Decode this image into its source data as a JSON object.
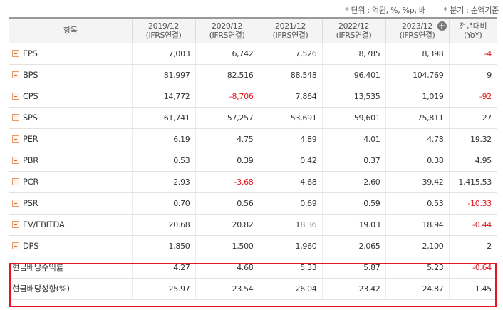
{
  "notes": {
    "unit": "* 단위 : 억원, %, %p, 배",
    "period": "* 분기 : 순액기준"
  },
  "header": {
    "item_label": "항목",
    "years": [
      {
        "year": "2019/12",
        "basis": "(IFRS연결)"
      },
      {
        "year": "2020/12",
        "basis": "(IFRS연결)"
      },
      {
        "year": "2021/12",
        "basis": "(IFRS연결)"
      },
      {
        "year": "2022/12",
        "basis": "(IFRS연결)"
      },
      {
        "year": "2023/12",
        "basis": "(IFRS연결)"
      }
    ],
    "yoy_line1": "전년대비",
    "yoy_line2": "(YoY)",
    "expand_icon": "circle-plus-icon"
  },
  "rows": [
    {
      "label": "EPS",
      "values": [
        "7,003",
        "6,742",
        "7,526",
        "8,785",
        "8,398",
        "-4"
      ]
    },
    {
      "label": "BPS",
      "values": [
        "81,997",
        "82,516",
        "88,548",
        "96,401",
        "104,769",
        "9"
      ]
    },
    {
      "label": "CPS",
      "values": [
        "14,772",
        "-8,706",
        "7,864",
        "13,535",
        "1,019",
        "-92"
      ]
    },
    {
      "label": "SPS",
      "values": [
        "61,741",
        "57,257",
        "53,691",
        "59,601",
        "75,811",
        "27"
      ]
    },
    {
      "label": "PER",
      "values": [
        "6.19",
        "4.75",
        "4.89",
        "4.01",
        "4.78",
        "19.32"
      ]
    },
    {
      "label": "PBR",
      "values": [
        "0.53",
        "0.39",
        "0.42",
        "0.37",
        "0.38",
        "4.95"
      ]
    },
    {
      "label": "PCR",
      "values": [
        "2.93",
        "-3.68",
        "4.68",
        "2.60",
        "39.42",
        "1,415.53"
      ]
    },
    {
      "label": "PSR",
      "values": [
        "0.70",
        "0.56",
        "0.69",
        "0.59",
        "0.53",
        "-10.33"
      ]
    },
    {
      "label": "EV/EBITDA",
      "values": [
        "20.68",
        "20.82",
        "18.36",
        "19.03",
        "18.94",
        "-0.44"
      ]
    },
    {
      "label": "DPS",
      "values": [
        "1,850",
        "1,500",
        "1,960",
        "2,065",
        "2,100",
        "2"
      ]
    },
    {
      "label": "현금배당수익률",
      "values": [
        "4.27",
        "4.68",
        "5.33",
        "5.87",
        "5.23",
        "-0.64"
      ]
    },
    {
      "label": "현금배당성향(%)",
      "values": [
        "25.97",
        "23.54",
        "26.04",
        "23.42",
        "24.87",
        "1.45"
      ]
    }
  ],
  "colors": {
    "negative": "#e0161d",
    "highlight_border": "#e8141c"
  }
}
